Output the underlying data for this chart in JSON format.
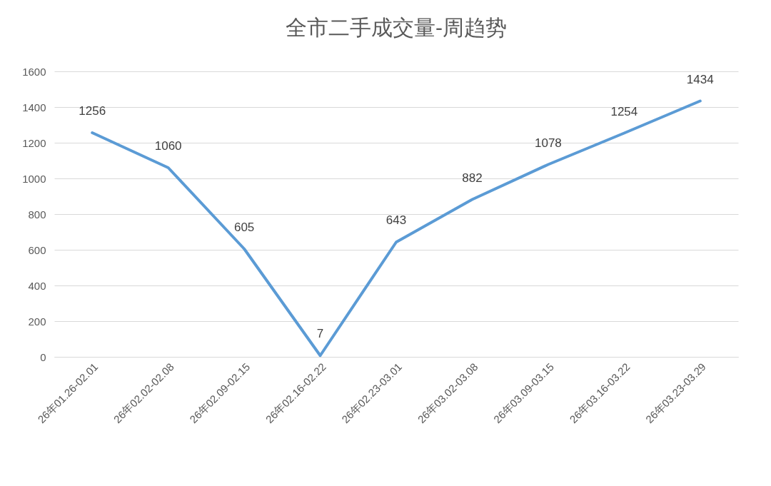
{
  "chart_data": {
    "type": "line",
    "title": "全市二手成交量-周趋势",
    "categories": [
      "26年01.26-02.01",
      "26年02.02-02.08",
      "26年02.09-02.15",
      "26年02.16-02.22",
      "26年02.23-03.01",
      "26年03.02-03.08",
      "26年03.09-03.15",
      "26年03.16-03.22",
      "26年03.23-03.29"
    ],
    "series": [
      {
        "color": "#5b9bd5",
        "values": [
          1256,
          1060,
          605,
          7,
          643,
          882,
          1078,
          1254,
          1434
        ]
      }
    ],
    "ylim": [
      0,
      1600
    ],
    "yticks": [
      0,
      200,
      400,
      600,
      800,
      1000,
      1200,
      1400,
      1600
    ],
    "grid": "y",
    "data_labels": true,
    "legend": false
  }
}
